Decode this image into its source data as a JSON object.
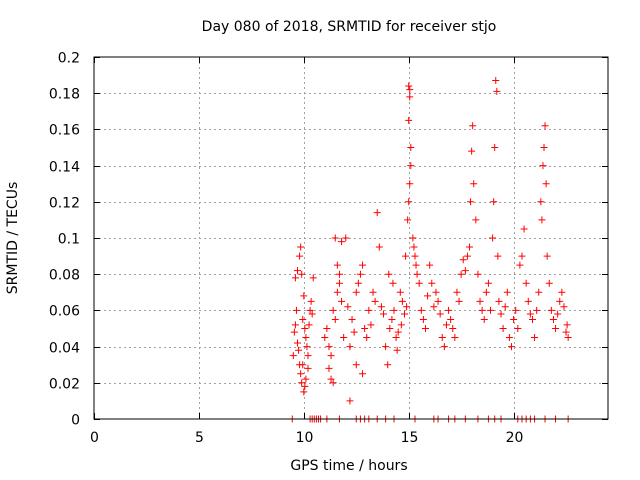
{
  "chart_data": {
    "type": "scatter",
    "title": "Day 080 of 2018, SRMTID for receiver stjo",
    "xlabel": "GPS time / hours",
    "ylabel": "SRMTID / TECUs",
    "xlim": [
      0,
      24.5
    ],
    "ylim": [
      0,
      0.2
    ],
    "x_ticks": [
      0,
      5,
      10,
      15,
      20
    ],
    "x_tick_labels": [
      "0",
      "5",
      "10",
      "15",
      "20"
    ],
    "y_ticks": [
      0,
      0.02,
      0.04,
      0.06,
      0.08,
      0.1,
      0.12,
      0.14,
      0.16,
      0.18,
      0.2
    ],
    "y_tick_labels": [
      "0",
      "0.02",
      "0.04",
      "0.06",
      "0.08",
      "0.1",
      "0.12",
      "0.14",
      "0.16",
      "0.18",
      "0.2"
    ],
    "grid": true,
    "marker": "plus",
    "color": "#ff0000",
    "series": [
      {
        "name": "SRMTID",
        "points": [
          [
            9.5,
            0.035
          ],
          [
            9.55,
            0.048
          ],
          [
            9.6,
            0.052
          ],
          [
            9.65,
            0.06
          ],
          [
            9.7,
            0.042
          ],
          [
            9.75,
            0.038
          ],
          [
            9.8,
            0.03
          ],
          [
            9.85,
            0.025
          ],
          [
            9.9,
            0.02
          ],
          [
            9.95,
            0.055
          ],
          [
            9.6,
            0.078
          ],
          [
            9.7,
            0.082
          ],
          [
            9.8,
            0.09
          ],
          [
            9.85,
            0.095
          ],
          [
            9.9,
            0.08
          ],
          [
            10.0,
            0.068
          ],
          [
            10.05,
            0.05
          ],
          [
            10.1,
            0.045
          ],
          [
            10.15,
            0.04
          ],
          [
            10.2,
            0.035
          ],
          [
            10.0,
            0.015
          ],
          [
            10.05,
            0.018
          ],
          [
            10.1,
            0.022
          ],
          [
            10.2,
            0.028
          ],
          [
            10.3,
            0.06
          ],
          [
            10.35,
            0.065
          ],
          [
            10.4,
            0.058
          ],
          [
            10.45,
            0.078
          ],
          [
            9.95,
            0.03
          ],
          [
            10.25,
            0.052
          ],
          [
            11.0,
            0.045
          ],
          [
            11.1,
            0.05
          ],
          [
            11.2,
            0.04
          ],
          [
            11.3,
            0.035
          ],
          [
            11.4,
            0.06
          ],
          [
            11.5,
            0.055
          ],
          [
            11.6,
            0.07
          ],
          [
            11.7,
            0.075
          ],
          [
            11.8,
            0.065
          ],
          [
            11.9,
            0.045
          ],
          [
            11.2,
            0.028
          ],
          [
            11.3,
            0.022
          ],
          [
            11.4,
            0.02
          ],
          [
            11.5,
            0.1
          ],
          [
            11.6,
            0.085
          ],
          [
            11.7,
            0.08
          ],
          [
            11.8,
            0.098
          ],
          [
            12.0,
            0.1
          ],
          [
            12.1,
            0.062
          ],
          [
            12.2,
            0.04
          ],
          [
            12.3,
            0.055
          ],
          [
            12.4,
            0.048
          ],
          [
            12.5,
            0.07
          ],
          [
            12.6,
            0.075
          ],
          [
            12.7,
            0.08
          ],
          [
            12.8,
            0.085
          ],
          [
            12.9,
            0.05
          ],
          [
            13.0,
            0.045
          ],
          [
            13.1,
            0.06
          ],
          [
            13.2,
            0.052
          ],
          [
            12.2,
            0.01
          ],
          [
            12.5,
            0.03
          ],
          [
            12.8,
            0.025
          ],
          [
            13.3,
            0.07
          ],
          [
            13.4,
            0.065
          ],
          [
            13.5,
            0.114
          ],
          [
            13.6,
            0.095
          ],
          [
            13.7,
            0.062
          ],
          [
            13.8,
            0.058
          ],
          [
            13.9,
            0.04
          ],
          [
            14.0,
            0.03
          ],
          [
            14.1,
            0.05
          ],
          [
            14.2,
            0.055
          ],
          [
            14.3,
            0.06
          ],
          [
            14.4,
            0.045
          ],
          [
            14.5,
            0.048
          ],
          [
            14.6,
            0.07
          ],
          [
            14.7,
            0.065
          ],
          [
            14.8,
            0.058
          ],
          [
            14.9,
            0.062
          ],
          [
            14.05,
            0.08
          ],
          [
            14.25,
            0.075
          ],
          [
            14.45,
            0.038
          ],
          [
            14.65,
            0.052
          ],
          [
            14.85,
            0.09
          ],
          [
            14.95,
            0.11
          ],
          [
            15.0,
            0.12
          ],
          [
            15.05,
            0.13
          ],
          [
            15.1,
            0.14
          ],
          [
            15.1,
            0.15
          ],
          [
            15.0,
            0.165
          ],
          [
            15.05,
            0.178
          ],
          [
            15.05,
            0.182
          ],
          [
            15.0,
            0.184
          ],
          [
            15.2,
            0.1
          ],
          [
            15.25,
            0.095
          ],
          [
            15.3,
            0.09
          ],
          [
            15.35,
            0.085
          ],
          [
            15.4,
            0.08
          ],
          [
            15.5,
            0.075
          ],
          [
            15.6,
            0.06
          ],
          [
            15.7,
            0.055
          ],
          [
            15.8,
            0.05
          ],
          [
            15.9,
            0.068
          ],
          [
            16.0,
            0.085
          ],
          [
            16.1,
            0.075
          ],
          [
            16.2,
            0.062
          ],
          [
            16.3,
            0.07
          ],
          [
            16.4,
            0.065
          ],
          [
            16.5,
            0.058
          ],
          [
            16.6,
            0.045
          ],
          [
            16.7,
            0.04
          ],
          [
            16.8,
            0.052
          ],
          [
            16.9,
            0.06
          ],
          [
            17.0,
            0.055
          ],
          [
            17.1,
            0.05
          ],
          [
            17.2,
            0.045
          ],
          [
            17.3,
            0.07
          ],
          [
            17.4,
            0.065
          ],
          [
            17.5,
            0.08
          ],
          [
            17.6,
            0.088
          ],
          [
            17.7,
            0.082
          ],
          [
            17.8,
            0.09
          ],
          [
            17.9,
            0.095
          ],
          [
            17.95,
            0.12
          ],
          [
            18.0,
            0.148
          ],
          [
            18.05,
            0.162
          ],
          [
            18.1,
            0.13
          ],
          [
            18.2,
            0.11
          ],
          [
            18.3,
            0.08
          ],
          [
            18.4,
            0.065
          ],
          [
            18.5,
            0.06
          ],
          [
            18.6,
            0.055
          ],
          [
            18.7,
            0.07
          ],
          [
            18.8,
            0.075
          ],
          [
            18.9,
            0.06
          ],
          [
            19.0,
            0.1
          ],
          [
            19.05,
            0.12
          ],
          [
            19.1,
            0.15
          ],
          [
            19.15,
            0.187
          ],
          [
            19.2,
            0.181
          ],
          [
            19.25,
            0.09
          ],
          [
            19.3,
            0.065
          ],
          [
            19.4,
            0.058
          ],
          [
            19.5,
            0.05
          ],
          [
            19.6,
            0.062
          ],
          [
            19.7,
            0.07
          ],
          [
            19.8,
            0.045
          ],
          [
            19.9,
            0.04
          ],
          [
            20.0,
            0.055
          ],
          [
            20.1,
            0.06
          ],
          [
            20.2,
            0.05
          ],
          [
            20.3,
            0.085
          ],
          [
            20.4,
            0.09
          ],
          [
            20.5,
            0.105
          ],
          [
            20.6,
            0.075
          ],
          [
            20.7,
            0.065
          ],
          [
            20.8,
            0.058
          ],
          [
            20.9,
            0.055
          ],
          [
            21.0,
            0.045
          ],
          [
            21.1,
            0.06
          ],
          [
            21.2,
            0.07
          ],
          [
            21.3,
            0.12
          ],
          [
            21.35,
            0.11
          ],
          [
            21.4,
            0.14
          ],
          [
            21.45,
            0.15
          ],
          [
            21.5,
            0.162
          ],
          [
            21.55,
            0.13
          ],
          [
            21.6,
            0.09
          ],
          [
            21.7,
            0.075
          ],
          [
            21.8,
            0.06
          ],
          [
            21.9,
            0.055
          ],
          [
            22.0,
            0.05
          ],
          [
            22.1,
            0.058
          ],
          [
            22.2,
            0.065
          ],
          [
            22.3,
            0.07
          ],
          [
            22.4,
            0.062
          ],
          [
            22.5,
            0.048
          ],
          [
            22.55,
            0.052
          ],
          [
            22.6,
            0.045
          ],
          [
            9.45,
            0.0
          ],
          [
            10.3,
            0.0
          ],
          [
            10.4,
            0.0
          ],
          [
            10.5,
            0.0
          ],
          [
            10.6,
            0.0
          ],
          [
            10.7,
            0.0
          ],
          [
            10.8,
            0.0
          ],
          [
            11.1,
            0.0
          ],
          [
            11.7,
            0.0
          ],
          [
            12.5,
            0.0
          ],
          [
            12.7,
            0.0
          ],
          [
            12.9,
            0.0
          ],
          [
            13.1,
            0.0
          ],
          [
            13.5,
            0.0
          ],
          [
            13.9,
            0.0
          ],
          [
            14.3,
            0.0
          ],
          [
            15.3,
            0.0
          ],
          [
            16.2,
            0.0
          ],
          [
            16.4,
            0.0
          ],
          [
            16.9,
            0.0
          ],
          [
            17.2,
            0.0
          ],
          [
            17.7,
            0.0
          ],
          [
            18.3,
            0.0
          ],
          [
            18.8,
            0.0
          ],
          [
            19.1,
            0.0
          ],
          [
            19.4,
            0.0
          ],
          [
            20.2,
            0.0
          ],
          [
            20.4,
            0.0
          ],
          [
            20.6,
            0.0
          ],
          [
            20.8,
            0.0
          ],
          [
            21.0,
            0.0
          ],
          [
            21.5,
            0.0
          ],
          [
            22.0,
            0.0
          ],
          [
            22.6,
            0.0
          ]
        ]
      }
    ]
  }
}
